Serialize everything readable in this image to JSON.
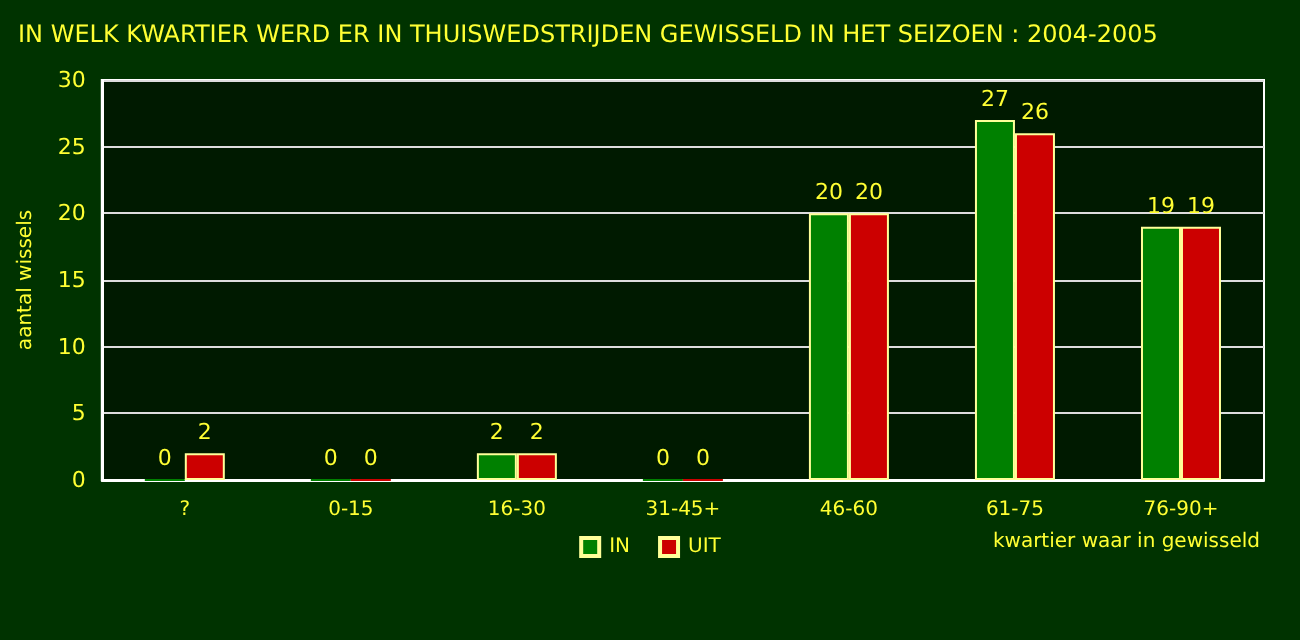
{
  "chart_data": {
    "type": "bar",
    "title": "IN WELK KWARTIER WERD ER IN THUISWEDSTRIJDEN GEWISSELD IN HET SEIZOEN : 2004-2005",
    "xlabel": "kwartier waar in gewisseld",
    "ylabel": "aantal wissels",
    "categories": [
      "?",
      "0-15",
      "16-30",
      "31-45+",
      "46-60",
      "61-75",
      "76-90+"
    ],
    "series": [
      {
        "name": "IN",
        "color": "#008000",
        "values": [
          0,
          0,
          2,
          0,
          20,
          27,
          19
        ]
      },
      {
        "name": "UIT",
        "color": "#cc0000",
        "values": [
          2,
          0,
          2,
          0,
          20,
          26,
          19
        ]
      }
    ],
    "ylim": [
      0,
      30
    ],
    "yticks": [
      0,
      5,
      10,
      15,
      20,
      25,
      30
    ],
    "grid": "y",
    "legend": "bottom",
    "data_labels": true
  }
}
